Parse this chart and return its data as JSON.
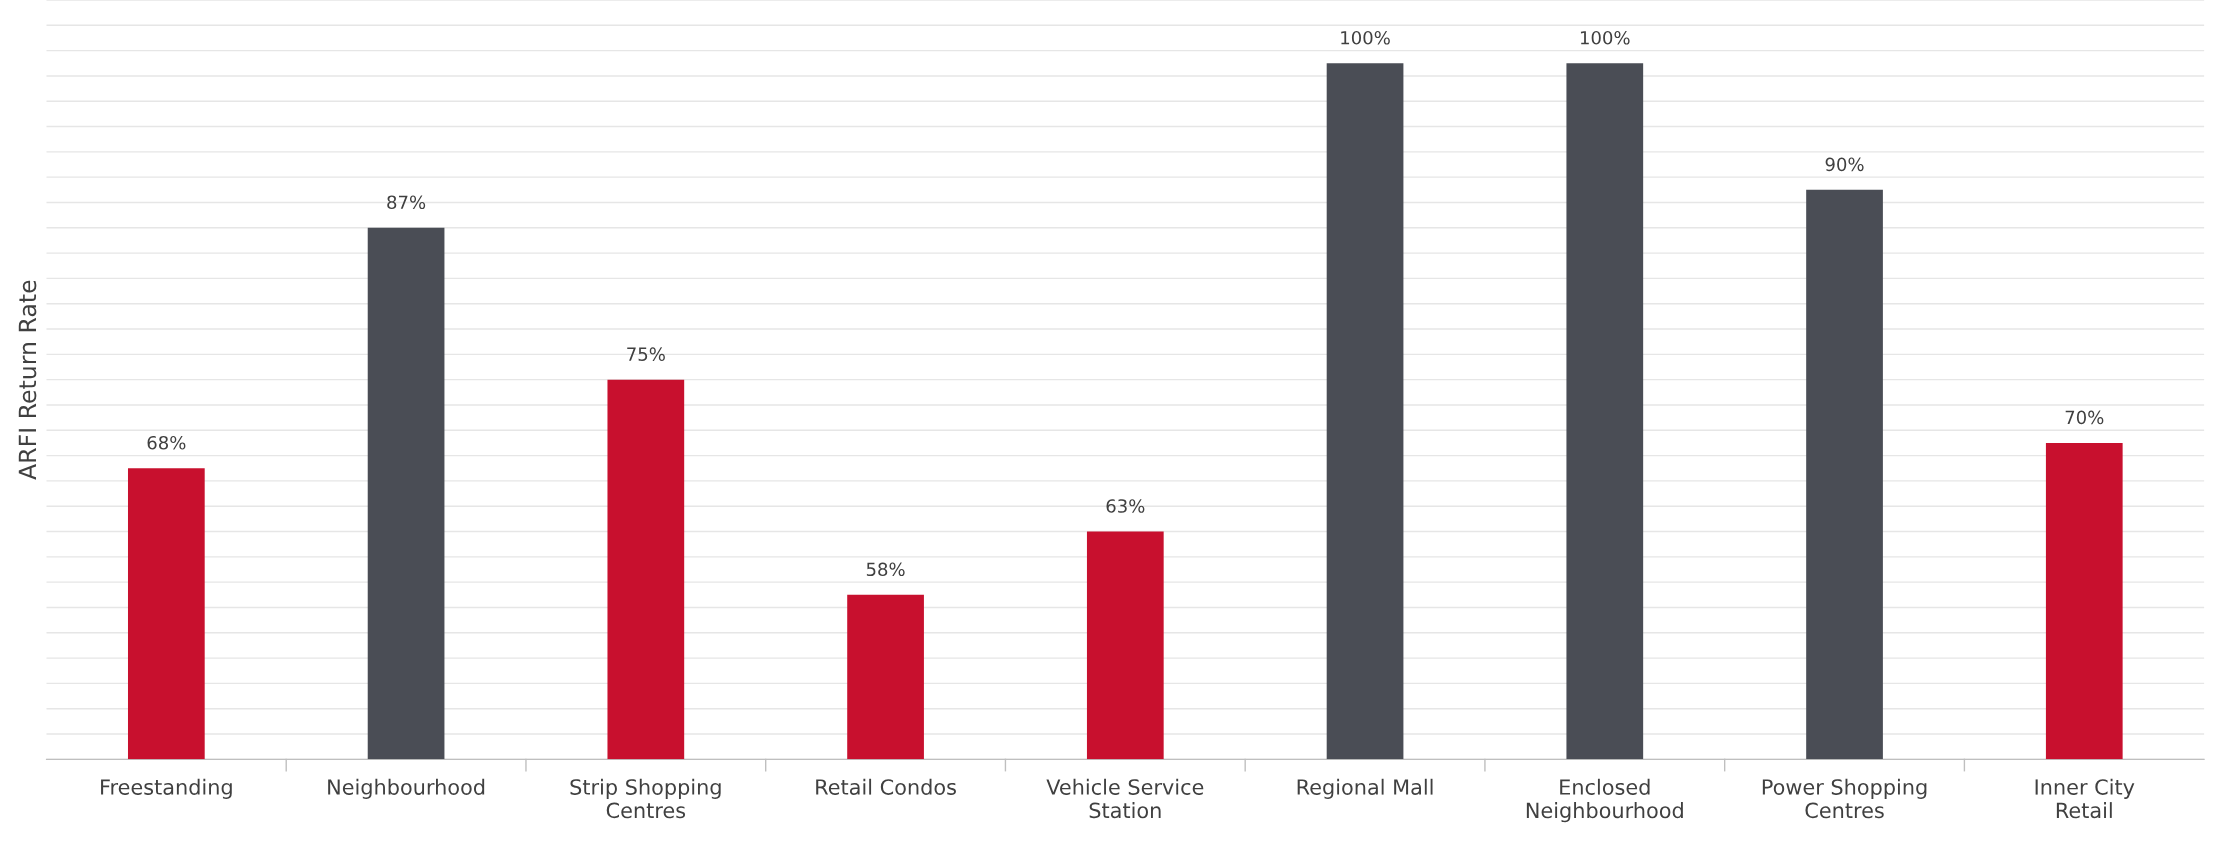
{
  "chart_data": {
    "type": "bar",
    "ylabel": "ARFI Return Rate",
    "categories": [
      "Freestanding",
      "Neighbourhood",
      "Strip Shopping Centres",
      "Retail Condos",
      "Vehicle Service Station",
      "Regional Mall",
      "Enclosed Neighbourhood",
      "Power Shopping Centres",
      "Inner City Retail"
    ],
    "values": [
      68,
      87,
      75,
      58,
      63,
      100,
      100,
      90,
      70
    ],
    "colors": [
      "#c8102e",
      "#4a4d55",
      "#c8102e",
      "#c8102e",
      "#c8102e",
      "#4a4d55",
      "#4a4d55",
      "#4a4d55",
      "#c8102e"
    ],
    "value_labels": [
      "68%",
      "87%",
      "75%",
      "58%",
      "63%",
      "100%",
      "100%",
      "90%",
      "70%"
    ],
    "ylim": [
      45,
      105
    ],
    "yticks": [
      {
        "value": 45,
        "label": null
      },
      {
        "value": 47,
        "label": null
      },
      {
        "value": 49,
        "label": null
      },
      {
        "value": 51,
        "label": null
      },
      {
        "value": 53,
        "label": null
      },
      {
        "value": 55,
        "label": null
      },
      {
        "value": 57,
        "label": null
      },
      {
        "value": 59,
        "label": null
      },
      {
        "value": 61,
        "label": null
      },
      {
        "value": 63,
        "label": null
      },
      {
        "value": 65,
        "label": null
      },
      {
        "value": 67,
        "label": null
      },
      {
        "value": 69,
        "label": null
      },
      {
        "value": 71,
        "label": null
      },
      {
        "value": 73,
        "label": null
      },
      {
        "value": 75,
        "label": null
      },
      {
        "value": 77,
        "label": null
      },
      {
        "value": 79,
        "label": null
      },
      {
        "value": 81,
        "label": null
      },
      {
        "value": 83,
        "label": null
      },
      {
        "value": 85,
        "label": null
      },
      {
        "value": 87,
        "label": null
      },
      {
        "value": 89,
        "label": null
      },
      {
        "value": 91,
        "label": null
      },
      {
        "value": 93,
        "label": null
      },
      {
        "value": 95,
        "label": null
      },
      {
        "value": 97,
        "label": null
      },
      {
        "value": 99,
        "label": null
      },
      {
        "value": 101,
        "label": null
      },
      {
        "value": 103,
        "label": null
      },
      {
        "value": 105,
        "label": null
      }
    ],
    "grid": "y",
    "tick_labels": "x"
  }
}
